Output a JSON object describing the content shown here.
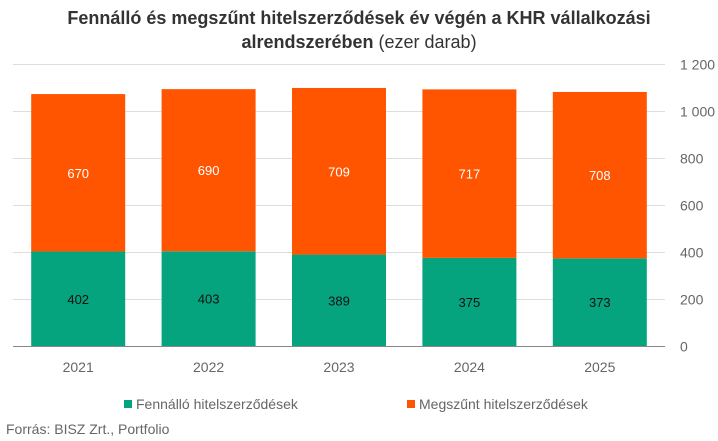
{
  "chart_data": {
    "type": "bar",
    "stacked": true,
    "title": "Fennálló és megszűnt hitelszerződések év végén a KHR vállalkozási alrendszerében",
    "title_suffix": "(ezer darab)",
    "xlabel": "",
    "ylabel": "",
    "categories": [
      "2021",
      "2022",
      "2023",
      "2024",
      "2025"
    ],
    "series": [
      {
        "name": "Fennálló hitelszerződések",
        "color": "#05a37e",
        "label_color": "#111111",
        "values": [
          402,
          403,
          389,
          375,
          373
        ]
      },
      {
        "name": "Megszűnt hitelszerződések",
        "color": "#ff5500",
        "label_color": "#ffffff",
        "values": [
          670,
          690,
          709,
          717,
          708
        ]
      }
    ],
    "ylim": [
      0,
      1200
    ],
    "yticks": [
      0,
      200,
      400,
      600,
      800,
      1000,
      1200
    ],
    "ytick_labels": [
      "0",
      "200",
      "400",
      "600",
      "800",
      "1 000",
      "1 200"
    ],
    "y_axis_position": "right",
    "grid": true,
    "legend_position": "bottom"
  },
  "source": "Forrás: BISZ Zrt., Portfolio"
}
